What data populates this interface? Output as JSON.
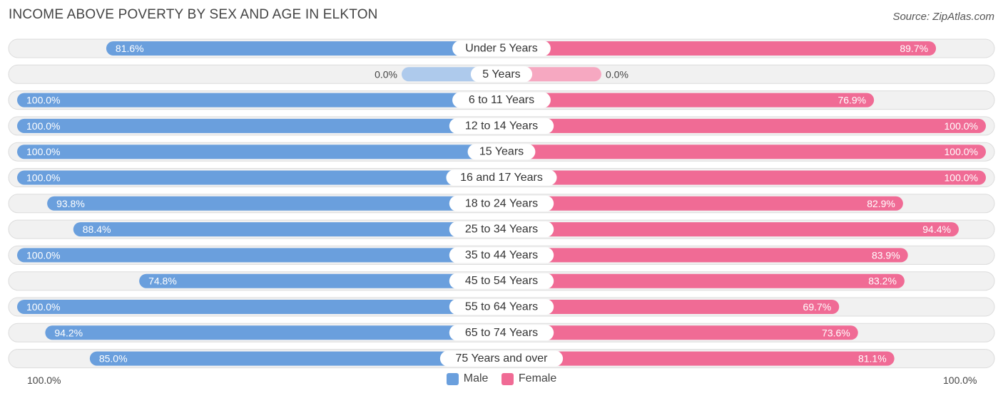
{
  "chart_data": {
    "type": "bar",
    "orientation": "horizontal-diverging",
    "title": "INCOME ABOVE POVERTY BY SEX AND AGE IN ELKTON",
    "source": "Source: ZipAtlas.com",
    "categories": [
      "Under 5 Years",
      "5 Years",
      "6 to 11 Years",
      "12 to 14 Years",
      "15 Years",
      "16 and 17 Years",
      "18 to 24 Years",
      "25 to 34 Years",
      "35 to 44 Years",
      "45 to 54 Years",
      "55 to 64 Years",
      "65 to 74 Years",
      "75 Years and over"
    ],
    "series": [
      {
        "name": "Male",
        "values": [
          81.6,
          0.0,
          100.0,
          100.0,
          100.0,
          100.0,
          93.8,
          88.4,
          100.0,
          74.8,
          100.0,
          94.2,
          85.0
        ]
      },
      {
        "name": "Female",
        "values": [
          89.7,
          0.0,
          76.9,
          100.0,
          100.0,
          100.0,
          82.9,
          94.4,
          83.9,
          83.2,
          69.7,
          73.6,
          81.1
        ]
      }
    ],
    "value_labels": {
      "male": [
        "81.6%",
        "0.0%",
        "100.0%",
        "100.0%",
        "100.0%",
        "100.0%",
        "93.8%",
        "88.4%",
        "100.0%",
        "74.8%",
        "100.0%",
        "94.2%",
        "85.0%"
      ],
      "female": [
        "89.7%",
        "0.0%",
        "76.9%",
        "100.0%",
        "100.0%",
        "100.0%",
        "82.9%",
        "94.4%",
        "83.9%",
        "83.2%",
        "69.7%",
        "73.6%",
        "81.1%"
      ]
    },
    "axis_min_label": "100.0%",
    "axis_max_label": "100.0%",
    "xlim": [
      -100,
      100
    ],
    "legend_position": "bottom-center"
  },
  "legend": {
    "male": "Male",
    "female": "Female"
  },
  "colors": {
    "male": "#6a9fdd",
    "male_light": "#aecaec",
    "female": "#f06b95",
    "female_light": "#f6a8c1",
    "track": "#f1f1f1",
    "track_border": "#dcdcdc"
  }
}
